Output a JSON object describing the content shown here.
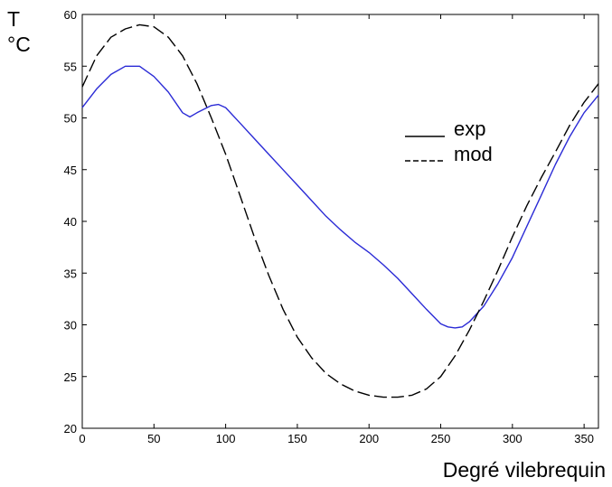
{
  "chart_data": {
    "type": "line",
    "title": "",
    "xlabel": "Degré vilebrequin",
    "ylabel_line1": "T",
    "ylabel_line2": "°C",
    "xlim": [
      0,
      360
    ],
    "ylim": [
      20,
      60
    ],
    "xticks": [
      0,
      50,
      100,
      150,
      200,
      250,
      300,
      350
    ],
    "yticks": [
      20,
      25,
      30,
      35,
      40,
      45,
      50,
      55,
      60
    ],
    "grid": false,
    "legend_position": "upper-right",
    "series": [
      {
        "name": "exp",
        "color": "#2b2bd6",
        "style": "solid",
        "x": [
          0,
          10,
          20,
          30,
          40,
          50,
          60,
          70,
          75,
          80,
          90,
          95,
          100,
          110,
          120,
          130,
          140,
          150,
          160,
          170,
          180,
          190,
          200,
          210,
          220,
          230,
          240,
          250,
          255,
          260,
          265,
          270,
          280,
          290,
          300,
          310,
          320,
          330,
          340,
          350,
          360
        ],
        "y": [
          51,
          52.8,
          54.2,
          55,
          55,
          54,
          52.5,
          50.5,
          50.1,
          50.5,
          51.2,
          51.3,
          51,
          49.5,
          48,
          46.5,
          45,
          43.5,
          42,
          40.5,
          39.2,
          38,
          37,
          35.8,
          34.5,
          33,
          31.5,
          30.1,
          29.8,
          29.7,
          29.8,
          30.3,
          31.8,
          34,
          36.5,
          39.5,
          42.5,
          45.5,
          48.2,
          50.5,
          52.2
        ]
      },
      {
        "name": "mod",
        "color": "#000000",
        "style": "dashed",
        "x": [
          0,
          10,
          20,
          30,
          40,
          50,
          60,
          70,
          80,
          90,
          100,
          110,
          120,
          130,
          140,
          150,
          160,
          170,
          180,
          190,
          200,
          210,
          220,
          230,
          240,
          250,
          260,
          270,
          280,
          290,
          300,
          310,
          320,
          330,
          340,
          350,
          360
        ],
        "y": [
          53,
          56,
          57.8,
          58.6,
          59,
          58.8,
          57.8,
          56,
          53.3,
          50,
          46.5,
          42.5,
          38.5,
          34.8,
          31.5,
          28.8,
          26.8,
          25.3,
          24.3,
          23.6,
          23.2,
          23,
          23,
          23.2,
          23.8,
          25,
          27,
          29.5,
          32.3,
          35.3,
          38.5,
          41.5,
          44.2,
          46.7,
          49.3,
          51.5,
          53.3
        ]
      }
    ]
  }
}
